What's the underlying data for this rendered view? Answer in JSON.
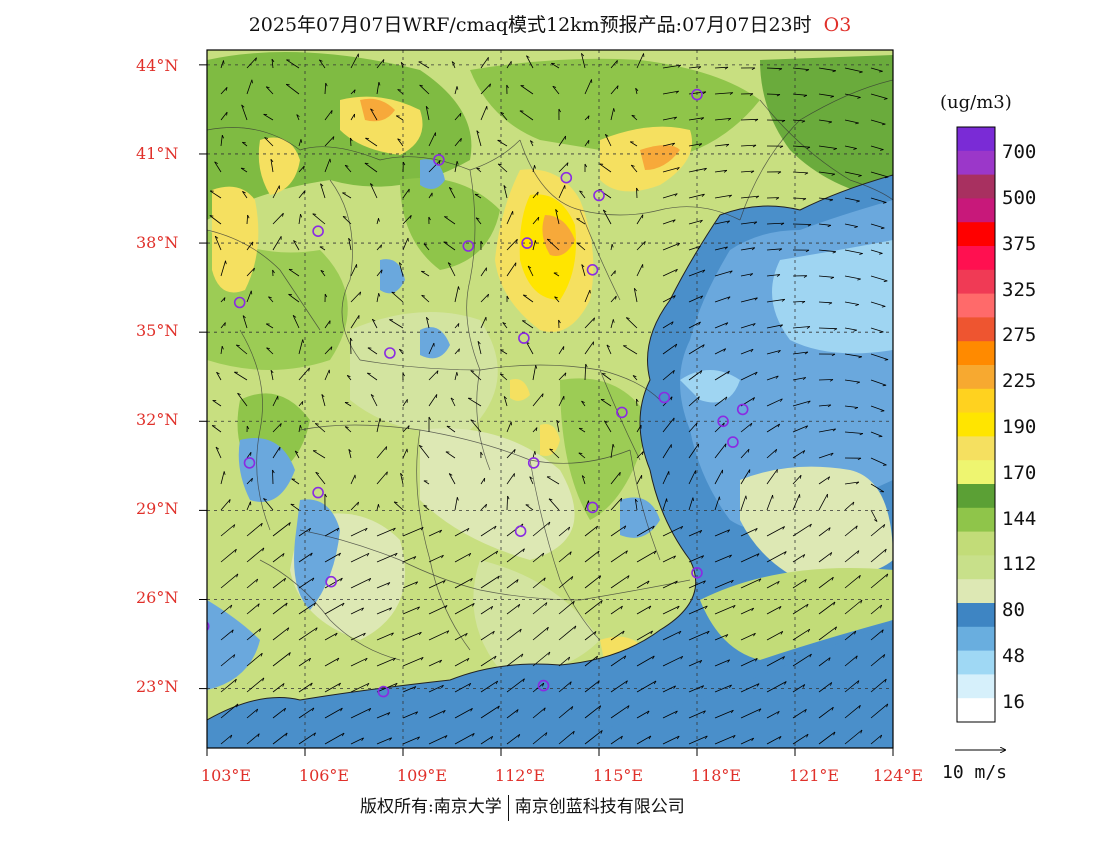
{
  "title": {
    "text": "2025年07月07日WRF/cmaq模式12km预报产品:07月07日23时",
    "species": "O3"
  },
  "map": {
    "lon_range": [
      103,
      124
    ],
    "lat_range": [
      21,
      44.5
    ],
    "lat_ticks": [
      "44°N",
      "41°N",
      "38°N",
      "35°N",
      "32°N",
      "29°N",
      "26°N",
      "23°N"
    ],
    "lon_ticks": [
      "103°E",
      "106°E",
      "109°E",
      "112°E",
      "115°E",
      "118°E",
      "121°E",
      "124°E"
    ],
    "grid": "dashed",
    "colors": {
      "sea_dark": "#4a8fca",
      "sea_mid": "#6aa8dd",
      "sea_light": "#9fd5f2",
      "land_light": "#dde8b4",
      "land_mid": "#c2dc78",
      "land_green": "#8fc54a",
      "land_dark": "#5ba035",
      "hot_yellow": "#f5e85a",
      "hot_gold": "#ffe500",
      "hot_orange": "#f7a93a"
    },
    "station_markers": [
      [
        118.0,
        43.0
      ],
      [
        110.1,
        40.8
      ],
      [
        114.0,
        40.2
      ],
      [
        115.0,
        39.6
      ],
      [
        106.4,
        38.4
      ],
      [
        111.0,
        37.9
      ],
      [
        112.8,
        38.0
      ],
      [
        114.8,
        37.1
      ],
      [
        104.0,
        36.0
      ],
      [
        112.7,
        34.8
      ],
      [
        108.6,
        34.3
      ],
      [
        118.8,
        32.0
      ],
      [
        115.7,
        32.3
      ],
      [
        117.0,
        32.8
      ],
      [
        119.4,
        32.4
      ],
      [
        104.3,
        30.6
      ],
      [
        113.0,
        30.6
      ],
      [
        119.1,
        31.3
      ],
      [
        106.4,
        29.6
      ],
      [
        114.8,
        29.1
      ],
      [
        112.6,
        28.3
      ],
      [
        106.8,
        26.6
      ],
      [
        118.0,
        26.9
      ],
      [
        102.9,
        25.1
      ],
      [
        108.4,
        22.9
      ],
      [
        113.3,
        23.1
      ]
    ]
  },
  "legend": {
    "unit": "(ug/m3)",
    "levels": [
      "700",
      "500",
      "375",
      "325",
      "275",
      "225",
      "190",
      "170",
      "144",
      "112",
      "80",
      "48",
      "16"
    ],
    "colors": [
      "#7a2bd6",
      "#9b37c9",
      "#a83060",
      "#c8187a",
      "#ff0000",
      "#ff1050",
      "#f03a55",
      "#ff6a6a",
      "#ee5530",
      "#ff8a00",
      "#f7a930",
      "#ffd21f",
      "#ffe500",
      "#f5e060",
      "#eef570",
      "#5ba035",
      "#8fc54a",
      "#c2dc78",
      "#c8e08a",
      "#dde8b4",
      "#3e85c3",
      "#69aedf",
      "#9fd8f4",
      "#d6f0fb",
      "#ffffff"
    ]
  },
  "wind_reference": "10 m/s",
  "copyright": {
    "left": "版权所有:南京大学",
    "right": "南京创蓝科技有限公司"
  }
}
